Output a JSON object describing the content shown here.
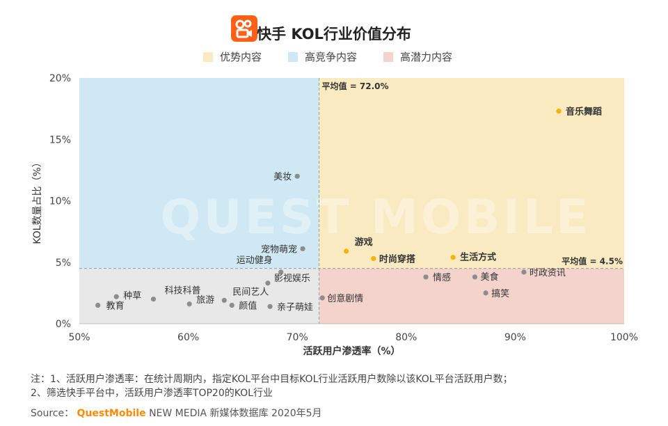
{
  "title": "快手 KOL行业价值分布",
  "legend": [
    {
      "label": "优势内容",
      "color": "#faeac1"
    },
    {
      "label": "高竞争内容",
      "color": "#cfe8f3"
    },
    {
      "label": "高潜力内容",
      "color": "#f3d3cc"
    }
  ],
  "watermark": "QUEST MOBILE",
  "notes": {
    "line1": "注：1、活跃用户渗透率：在统计周期内，指定KOL平台中目标KOL行业活跃用户数除以该KOL平台活跃用户数；",
    "line2": "2、筛选快手平台中，活跃用户渗透率TOP20的KOL行业"
  },
  "source": {
    "label": "Source：",
    "brand": "QuestMobile",
    "rest": "NEW MEDIA 新媒体数据库 2020年5月"
  },
  "chart_data": {
    "type": "scatter",
    "title": "快手 KOL行业价值分布",
    "xlabel": "活跃用户渗透率（%）",
    "ylabel": "KOL数量占比（%）",
    "xlim": [
      50,
      100
    ],
    "ylim": [
      0,
      20
    ],
    "x_ticks": [
      "50%",
      "60%",
      "70%",
      "80%",
      "90%",
      "100%"
    ],
    "y_ticks": [
      "0%",
      "5%",
      "10%",
      "15%",
      "20%"
    ],
    "x_average": 72.0,
    "y_average": 4.5,
    "x_average_label": "平均值 = 72.0%",
    "y_average_label": "平均值 = 4.5%",
    "quadrant_colors": {
      "advantage": "#faeac1",
      "competition": "#cfe8f3",
      "potential": "#f3d3cc",
      "other": "#e8e8e8"
    },
    "point_colors": {
      "highlight": "#f5b400",
      "normal": "#8c8c8c"
    },
    "points": [
      {
        "label": "音乐舞蹈",
        "x": 94.0,
        "y": 17.3,
        "highlight": true
      },
      {
        "label": "美妆",
        "x": 70.0,
        "y": 12.0,
        "highlight": false
      },
      {
        "label": "宠物萌宠",
        "x": 70.5,
        "y": 6.1,
        "highlight": false
      },
      {
        "label": "游戏",
        "x": 74.5,
        "y": 5.9,
        "highlight": true
      },
      {
        "label": "时尚穿搭",
        "x": 77.0,
        "y": 5.3,
        "highlight": true
      },
      {
        "label": "生活方式",
        "x": 84.3,
        "y": 5.4,
        "highlight": true
      },
      {
        "label": "运动健身",
        "x": 68.5,
        "y": 4.2,
        "highlight": false
      },
      {
        "label": "影视娱乐",
        "x": 67.3,
        "y": 3.3,
        "highlight": false
      },
      {
        "label": "情感",
        "x": 81.8,
        "y": 3.8,
        "highlight": false
      },
      {
        "label": "美食",
        "x": 86.3,
        "y": 3.8,
        "highlight": false
      },
      {
        "label": "时政资讯",
        "x": 90.8,
        "y": 4.2,
        "highlight": false
      },
      {
        "label": "搞笑",
        "x": 87.3,
        "y": 2.5,
        "highlight": false
      },
      {
        "label": "创意剧情",
        "x": 72.3,
        "y": 2.1,
        "highlight": false
      },
      {
        "label": "科技科普",
        "x": 56.8,
        "y": 2.0,
        "highlight": false
      },
      {
        "label": "种草",
        "x": 53.4,
        "y": 2.2,
        "highlight": false
      },
      {
        "label": "教育",
        "x": 51.7,
        "y": 1.5,
        "highlight": false
      },
      {
        "label": "旅游",
        "x": 60.1,
        "y": 1.6,
        "highlight": false
      },
      {
        "label": "民间艺人",
        "x": 63.3,
        "y": 1.9,
        "highlight": false
      },
      {
        "label": "颜值",
        "x": 64.0,
        "y": 1.5,
        "highlight": false
      },
      {
        "label": "亲子萌娃",
        "x": 67.5,
        "y": 1.4,
        "highlight": false
      }
    ]
  }
}
